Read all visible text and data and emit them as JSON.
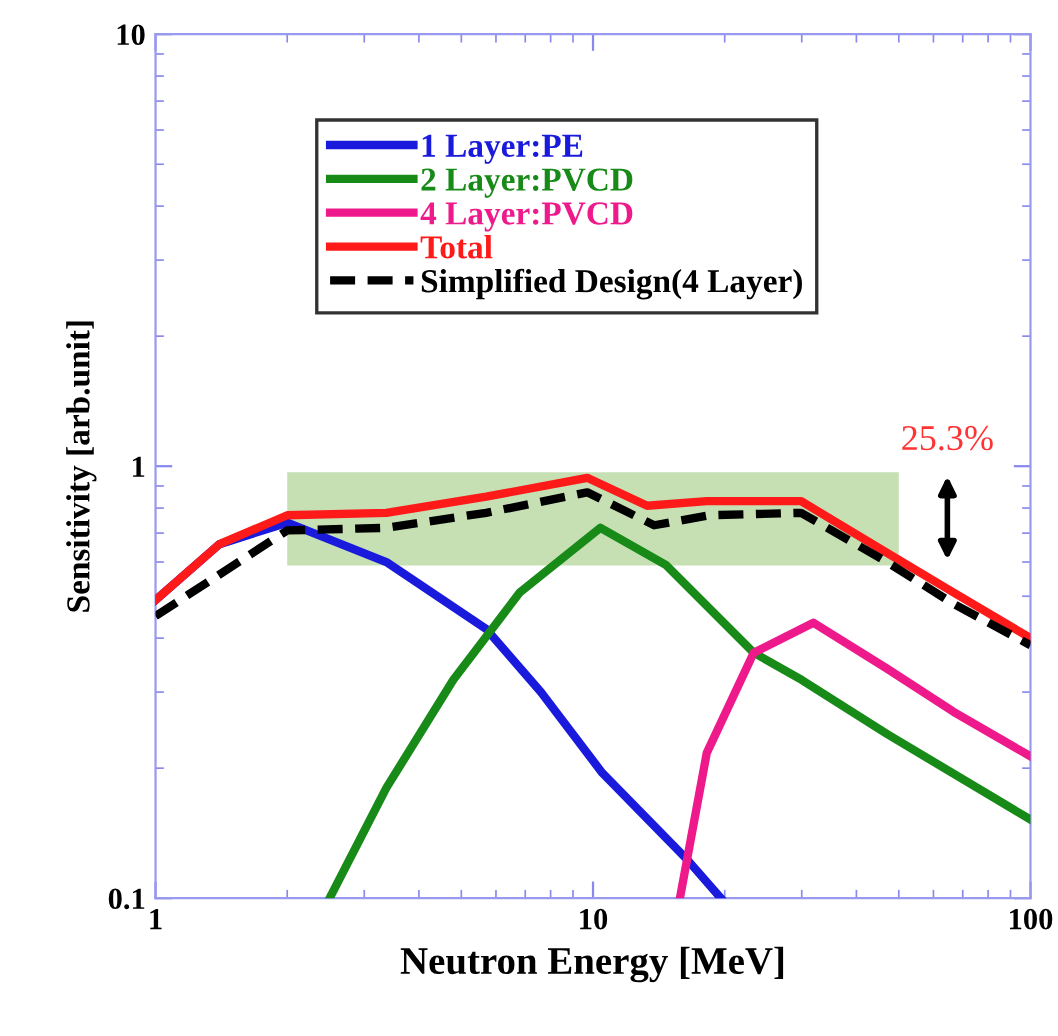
{
  "chart_data": {
    "type": "line",
    "xlabel": "Neutron Energy [MeV]",
    "ylabel": "Sensitivity [arb.unit]",
    "log": "xy",
    "xlim": [
      1,
      100
    ],
    "xticks": [
      1,
      10,
      100
    ],
    "ylim": [
      0.1,
      10
    ],
    "yticks": [
      0.1,
      1,
      10
    ],
    "grid": false,
    "legend": "top",
    "line_style": "solid",
    "marker": "none",
    "series": [
      {
        "name": "1 Layer:PE",
        "color": "#1a1adc",
        "x": [
          1,
          1.4,
          2.0,
          3.37,
          5.7,
          7.6,
          10.5,
          16.4,
          19.6
        ],
        "values": [
          0.49,
          0.66,
          0.74,
          0.6,
          0.42,
          0.3,
          0.195,
          0.123,
          0.1
        ]
      },
      {
        "name": "2 Layer:PVCD",
        "color": "#178a17",
        "x": [
          2.5,
          3.37,
          4.79,
          6.8,
          10.4,
          14.7,
          23.3,
          30,
          47,
          100
        ],
        "values": [
          0.1,
          0.18,
          0.32,
          0.51,
          0.72,
          0.59,
          0.37,
          0.32,
          0.24,
          0.152
        ]
      },
      {
        "name": "4 Layer:PVCD",
        "color": "#ee1a8c",
        "x": [
          15.8,
          18.2,
          23.3,
          31.9,
          47,
          66.7,
          100
        ],
        "values": [
          0.1,
          0.217,
          0.37,
          0.434,
          0.34,
          0.27,
          0.213
        ]
      },
      {
        "name": "Total",
        "color": "#ff1a1a",
        "x": [
          1,
          1.4,
          2.0,
          3.37,
          5.7,
          9.7,
          13.3,
          18.2,
          29.9,
          47,
          66.7,
          100
        ],
        "values": [
          0.49,
          0.66,
          0.77,
          0.78,
          0.85,
          0.94,
          0.81,
          0.83,
          0.83,
          0.63,
          0.51,
          0.4
        ]
      },
      {
        "name": "Simplified Design(4 Layer)",
        "color": "#000000",
        "line_style": "dashed",
        "x": [
          1,
          2.0,
          3.37,
          5.7,
          9.7,
          13.8,
          18.5,
          29.9,
          47,
          66.7,
          100
        ],
        "values": [
          0.45,
          0.71,
          0.72,
          0.78,
          0.87,
          0.73,
          0.77,
          0.78,
          0.6,
          0.48,
          0.385
        ]
      }
    ],
    "annotations": [
      "25.3%"
    ]
  }
}
